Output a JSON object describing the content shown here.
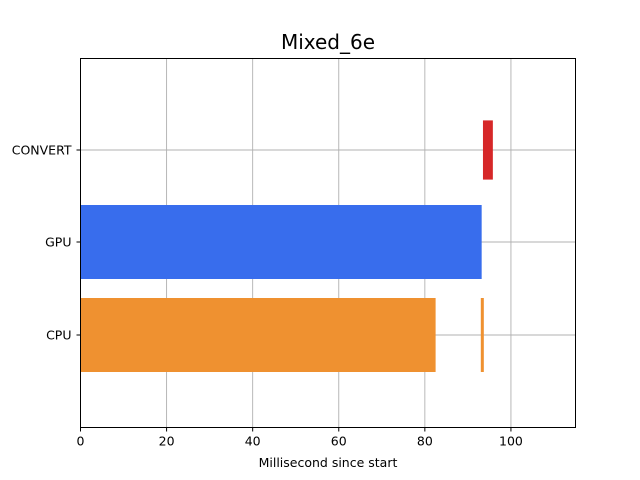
{
  "chart_data": {
    "type": "bar",
    "orientation": "horizontal",
    "title": "Mixed_6e",
    "xlabel": "Millisecond since start",
    "ylabel": "",
    "xlim": [
      0,
      115
    ],
    "x_ticks": [
      0,
      20,
      40,
      60,
      80,
      100
    ],
    "categories": [
      "CPU",
      "GPU",
      "CONVERT"
    ],
    "grid": true,
    "segments": [
      {
        "category": "CPU",
        "start": 0.0,
        "end": 82.5,
        "color": "#ef9130"
      },
      {
        "category": "CPU",
        "start": 93.0,
        "end": 93.7,
        "color": "#ef9130"
      },
      {
        "category": "GPU",
        "start": 0.0,
        "end": 93.2,
        "color": "#386ded"
      },
      {
        "category": "CONVERT",
        "start": 93.5,
        "end": 95.8,
        "color": "#d62728",
        "bar_height_ratio": 0.8
      }
    ]
  }
}
